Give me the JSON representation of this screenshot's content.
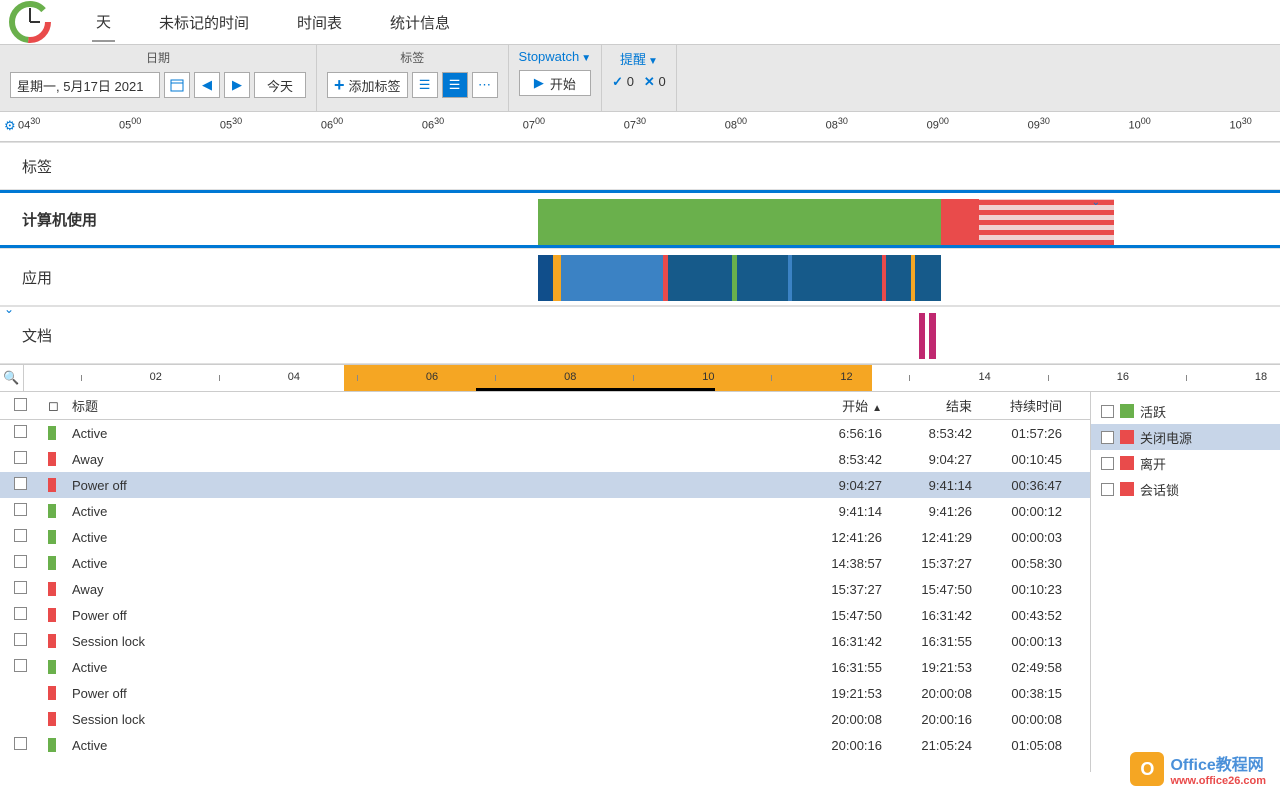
{
  "tabs": {
    "day": "天",
    "unmarked": "未标记的时间",
    "timesheet": "时间表",
    "stats": "统计信息"
  },
  "toolbar": {
    "date_label": "日期",
    "date_value": "星期一, 5月17日 2021",
    "today": "今天",
    "tag_label": "标签",
    "add_tag": "添加标签",
    "stopwatch": "Stopwatch",
    "start": "开始",
    "remind": "提醒",
    "check_count": "0",
    "x_count": "0"
  },
  "ruler1": {
    "ticks": [
      "04:30",
      "05:00",
      "05:30",
      "06:00",
      "06:30",
      "07:00",
      "07:30",
      "08:00",
      "08:30",
      "09:00",
      "09:30",
      "10:00",
      "10:30"
    ],
    "positions_pct": [
      0,
      8,
      16,
      24,
      32,
      40,
      48,
      56,
      64,
      72,
      80,
      88,
      96
    ]
  },
  "timeline": {
    "row_labels": [
      "标签",
      "计算机使用",
      "应用",
      "文档"
    ],
    "usage_bars": [
      {
        "left_pct": 42.0,
        "width_pct": 31.5,
        "color": "#6ab04c"
      },
      {
        "left_pct": 73.5,
        "width_pct": 3.0,
        "color": "#e94b4b"
      },
      {
        "left_pct": 76.5,
        "width_pct": 10.5,
        "color": "stripes"
      }
    ],
    "app_bars": [
      {
        "left_pct": 42.0,
        "width_pct": 1.2,
        "color": "#104e8b"
      },
      {
        "left_pct": 43.2,
        "width_pct": 0.6,
        "color": "#f5a623"
      },
      {
        "left_pct": 43.8,
        "width_pct": 8.0,
        "color": "#3b82c4"
      },
      {
        "left_pct": 51.8,
        "width_pct": 0.4,
        "color": "#e94b4b"
      },
      {
        "left_pct": 52.2,
        "width_pct": 5.0,
        "color": "#165a8a"
      },
      {
        "left_pct": 57.2,
        "width_pct": 0.4,
        "color": "#6ab04c"
      },
      {
        "left_pct": 57.6,
        "width_pct": 4.0,
        "color": "#165a8a"
      },
      {
        "left_pct": 61.6,
        "width_pct": 0.3,
        "color": "#3b82c4"
      },
      {
        "left_pct": 61.9,
        "width_pct": 7.0,
        "color": "#165a8a"
      },
      {
        "left_pct": 68.9,
        "width_pct": 0.3,
        "color": "#e94b4b"
      },
      {
        "left_pct": 69.2,
        "width_pct": 2.0,
        "color": "#165a8a"
      },
      {
        "left_pct": 71.2,
        "width_pct": 0.3,
        "color": "#f5a623"
      },
      {
        "left_pct": 71.5,
        "width_pct": 2.0,
        "color": "#165a8a"
      }
    ],
    "doc_bars": [
      {
        "left_pct": 71.8,
        "width_pct": 0.5,
        "color": "#c02870"
      },
      {
        "left_pct": 72.6,
        "width_pct": 0.5,
        "color": "#c02870"
      }
    ]
  },
  "ruler2": {
    "labels": [
      "02",
      "04",
      "06",
      "08",
      "10",
      "12",
      "14",
      "16",
      "18"
    ],
    "positions_pct": [
      10,
      21,
      32,
      43,
      54,
      65,
      76,
      87,
      98
    ],
    "band_left_pct": 25.5,
    "band_width_pct": 42.0,
    "dark_left_pct": 36.0,
    "dark_width_pct": 19.0
  },
  "table": {
    "headers": {
      "title": "标题",
      "start": "开始",
      "end": "结束",
      "duration": "持续时间"
    },
    "rows": [
      {
        "color": "#6ab04c",
        "title": "Active",
        "start": "6:56:16",
        "end": "8:53:42",
        "dur": "01:57:26",
        "selected": false,
        "cb": true
      },
      {
        "color": "#e94b4b",
        "title": "Away",
        "start": "8:53:42",
        "end": "9:04:27",
        "dur": "00:10:45",
        "selected": false,
        "cb": true
      },
      {
        "color": "#e94b4b",
        "title": "Power off",
        "start": "9:04:27",
        "end": "9:41:14",
        "dur": "00:36:47",
        "selected": true,
        "cb": true
      },
      {
        "color": "#6ab04c",
        "title": "Active",
        "start": "9:41:14",
        "end": "9:41:26",
        "dur": "00:00:12",
        "selected": false,
        "cb": true
      },
      {
        "color": "#6ab04c",
        "title": "Active",
        "start": "12:41:26",
        "end": "12:41:29",
        "dur": "00:00:03",
        "selected": false,
        "cb": true
      },
      {
        "color": "#6ab04c",
        "title": "Active",
        "start": "14:38:57",
        "end": "15:37:27",
        "dur": "00:58:30",
        "selected": false,
        "cb": true
      },
      {
        "color": "#e94b4b",
        "title": "Away",
        "start": "15:37:27",
        "end": "15:47:50",
        "dur": "00:10:23",
        "selected": false,
        "cb": true
      },
      {
        "color": "#e94b4b",
        "title": "Power off",
        "start": "15:47:50",
        "end": "16:31:42",
        "dur": "00:43:52",
        "selected": false,
        "cb": true
      },
      {
        "color": "#e94b4b",
        "title": "Session lock",
        "start": "16:31:42",
        "end": "16:31:55",
        "dur": "00:00:13",
        "selected": false,
        "cb": true
      },
      {
        "color": "#6ab04c",
        "title": "Active",
        "start": "16:31:55",
        "end": "19:21:53",
        "dur": "02:49:58",
        "selected": false,
        "cb": true
      },
      {
        "color": "#e94b4b",
        "title": "Power off",
        "start": "19:21:53",
        "end": "20:00:08",
        "dur": "00:38:15",
        "selected": false,
        "cb": false
      },
      {
        "color": "#e94b4b",
        "title": "Session lock",
        "start": "20:00:08",
        "end": "20:00:16",
        "dur": "00:00:08",
        "selected": false,
        "cb": false
      },
      {
        "color": "#6ab04c",
        "title": "Active",
        "start": "20:00:16",
        "end": "21:05:24",
        "dur": "01:05:08",
        "selected": false,
        "cb": true
      }
    ]
  },
  "legend": {
    "items": [
      {
        "color": "#6ab04c",
        "label": "活跃",
        "selected": false
      },
      {
        "color": "#e94b4b",
        "label": "关闭电源",
        "selected": true
      },
      {
        "color": "#e94b4b",
        "label": "离开",
        "selected": false
      },
      {
        "color": "#e94b4b",
        "label": "会话锁",
        "selected": false
      }
    ]
  },
  "watermark": {
    "brand1": "Office",
    "brand2": "教程网",
    "url": "www.office26.com"
  }
}
